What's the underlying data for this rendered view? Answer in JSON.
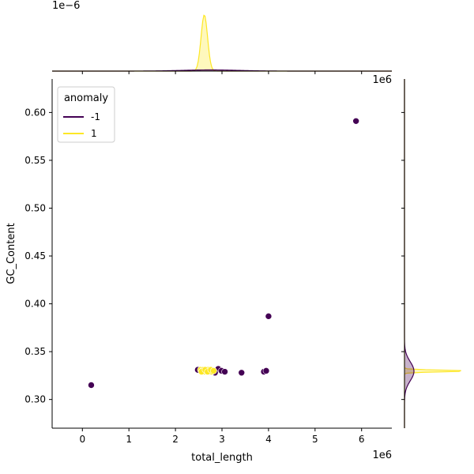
{
  "chart_data": {
    "type": "scatter",
    "title": "",
    "xlabel": "total_length",
    "ylabel": "GC_Content",
    "x_offset_label": "1e6",
    "x_offset_label_top": "1e6",
    "y_offset_label_top_marginal": "1e−6",
    "xlim": [
      -650000,
      6650000
    ],
    "ylim": [
      0.27,
      0.635
    ],
    "x_ticks": [
      0,
      1000000,
      2000000,
      3000000,
      4000000,
      5000000,
      6000000
    ],
    "x_tick_labels": [
      "0",
      "1",
      "2",
      "3",
      "4",
      "5",
      "6"
    ],
    "y_ticks": [
      0.3,
      0.35,
      0.4,
      0.45,
      0.5,
      0.55,
      0.6
    ],
    "y_tick_labels": [
      "0.30",
      "0.35",
      "0.40",
      "0.45",
      "0.50",
      "0.55",
      "0.60"
    ],
    "grid": false,
    "legend": {
      "title": "anomaly",
      "placement": "top-left",
      "entries": [
        {
          "label": "-1",
          "color": "#440154"
        },
        {
          "label": "1",
          "color": "#fde725"
        }
      ]
    },
    "series": [
      {
        "name": "-1",
        "color": "#440154",
        "points": [
          {
            "x": 5880000,
            "y": 0.591
          },
          {
            "x": 4000000,
            "y": 0.387
          },
          {
            "x": 190000,
            "y": 0.315
          },
          {
            "x": 3420000,
            "y": 0.328
          },
          {
            "x": 3900000,
            "y": 0.329
          },
          {
            "x": 3950000,
            "y": 0.33
          },
          {
            "x": 2920000,
            "y": 0.332
          },
          {
            "x": 2990000,
            "y": 0.33
          },
          {
            "x": 3060000,
            "y": 0.329
          },
          {
            "x": 2850000,
            "y": 0.328
          },
          {
            "x": 2480000,
            "y": 0.331
          },
          {
            "x": 2720000,
            "y": 0.329
          }
        ]
      },
      {
        "name": "1",
        "color": "#fde725",
        "points": [
          {
            "x": 2540000,
            "y": 0.331
          },
          {
            "x": 2580000,
            "y": 0.33
          },
          {
            "x": 2620000,
            "y": 0.329
          },
          {
            "x": 2660000,
            "y": 0.33
          },
          {
            "x": 2700000,
            "y": 0.331
          },
          {
            "x": 2740000,
            "y": 0.33
          },
          {
            "x": 2780000,
            "y": 0.329
          },
          {
            "x": 2600000,
            "y": 0.331
          },
          {
            "x": 2560000,
            "y": 0.329
          },
          {
            "x": 2640000,
            "y": 0.331
          },
          {
            "x": 2690000,
            "y": 0.329
          },
          {
            "x": 2760000,
            "y": 0.331
          },
          {
            "x": 2820000,
            "y": 0.33
          }
        ]
      }
    ],
    "marginal_x": {
      "type": "kde",
      "series": [
        {
          "name": "1",
          "color": "#fde725",
          "peak_x": 2620000,
          "relative_height": 0.95,
          "spread": 70000
        },
        {
          "name": "-1",
          "color": "#440154",
          "peak_x": 2750000,
          "relative_height": 0.02,
          "spread": 600000
        }
      ]
    },
    "marginal_y": {
      "type": "kde",
      "series": [
        {
          "name": "1",
          "color": "#fde725",
          "peak_y": 0.3298,
          "relative_height": 1.0,
          "spread": 0.0009
        },
        {
          "name": "-1",
          "color": "#440154",
          "peak_y": 0.3295,
          "relative_height": 0.15,
          "spread": 0.01
        }
      ]
    }
  }
}
